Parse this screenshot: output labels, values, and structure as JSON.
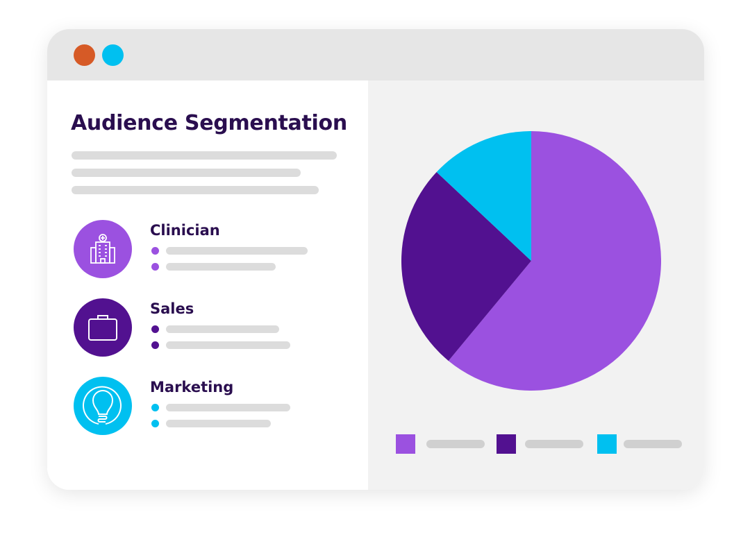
{
  "window": {
    "controls": [
      {
        "name": "close",
        "color": "#D65A26"
      },
      {
        "name": "minimize",
        "color": "#00C0F0"
      }
    ]
  },
  "main": {
    "title": "Audience Segmentation",
    "segments": [
      {
        "label": "Clinician",
        "icon": "hospital-icon",
        "color": "#9B51E0"
      },
      {
        "label": "Sales",
        "icon": "briefcase-icon",
        "color": "#521190"
      },
      {
        "label": "Marketing",
        "icon": "lightbulb-icon",
        "color": "#00C0F0"
      }
    ]
  },
  "chart_data": {
    "type": "pie",
    "values": [
      61,
      26,
      13
    ],
    "colors": [
      "#9B51E0",
      "#521190",
      "#00C0F0"
    ],
    "start": "top, clockwise",
    "legend": "bottom"
  }
}
